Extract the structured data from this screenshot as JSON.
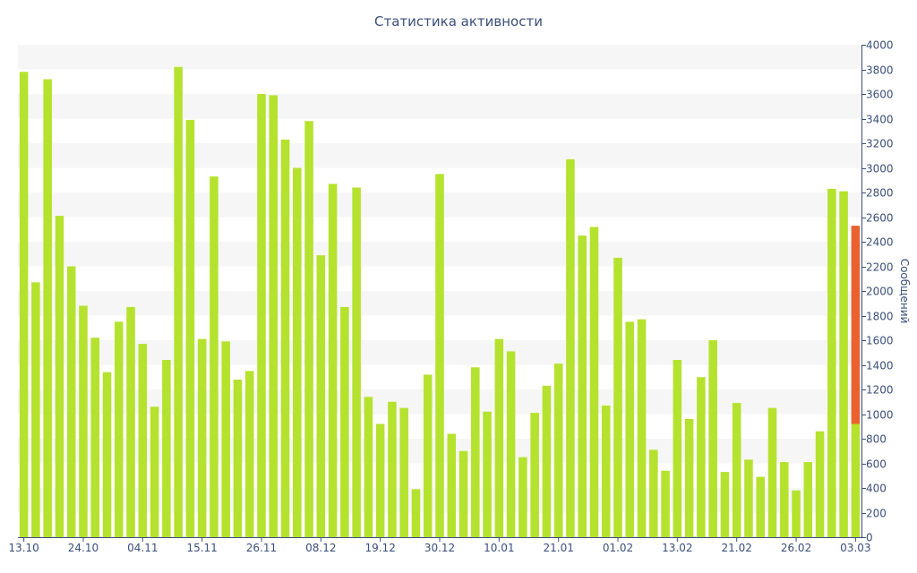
{
  "chart_data": {
    "type": "bar",
    "title": "Статистика активности",
    "ylabel": "Сообщений",
    "ylim": [
      0,
      4000
    ],
    "yticks": [
      0,
      200,
      400,
      600,
      800,
      1000,
      1200,
      1400,
      1600,
      1800,
      2000,
      2200,
      2400,
      2600,
      2800,
      3000,
      3200,
      3400,
      3600,
      3800,
      4000
    ],
    "xtick_labels": [
      "13.10",
      "24.10",
      "04.11",
      "15.11",
      "26.11",
      "08.12",
      "19.12",
      "30.12",
      "10.01",
      "21.01",
      "01.02",
      "13.02",
      "21.02",
      "26.02",
      "03.03"
    ],
    "grid": true,
    "y_axis_side": "right",
    "colors": {
      "bar": "#b5e22e",
      "highlight": "#e8622f",
      "text": "#3a4f7a",
      "axis": "#3a4f7a",
      "band": "#f6f6f6"
    },
    "series": [
      {
        "values": [
          3780,
          2070,
          3720,
          2610,
          2200,
          1880,
          1620,
          1340,
          1750,
          1870,
          1570,
          1060,
          1440,
          3820,
          3390,
          1610,
          2930,
          1590,
          1280,
          1350,
          3600,
          3590,
          3230,
          3000,
          3380,
          2290,
          2870,
          1870,
          2840,
          1140,
          920,
          1100,
          1050,
          390,
          1320,
          2950,
          840,
          700,
          1380,
          1020,
          1610,
          1510,
          650,
          1010,
          1230,
          1410,
          3070,
          2450,
          2520,
          1070,
          2270,
          1750,
          1770,
          710,
          540,
          1440,
          960,
          1300,
          1600,
          530,
          1090,
          630,
          490,
          1050,
          610,
          380,
          610,
          860,
          2830,
          2810,
          920
        ]
      },
      {
        "values": [
          null,
          null,
          null,
          null,
          null,
          null,
          null,
          null,
          null,
          null,
          null,
          null,
          null,
          null,
          null,
          null,
          null,
          null,
          null,
          null,
          null,
          null,
          null,
          null,
          null,
          null,
          null,
          null,
          null,
          null,
          null,
          null,
          null,
          null,
          null,
          null,
          null,
          null,
          null,
          null,
          null,
          null,
          null,
          null,
          null,
          null,
          null,
          null,
          null,
          null,
          null,
          null,
          null,
          null,
          null,
          null,
          null,
          null,
          null,
          null,
          null,
          null,
          null,
          null,
          null,
          null,
          null,
          null,
          null,
          null,
          1610
        ]
      }
    ]
  }
}
